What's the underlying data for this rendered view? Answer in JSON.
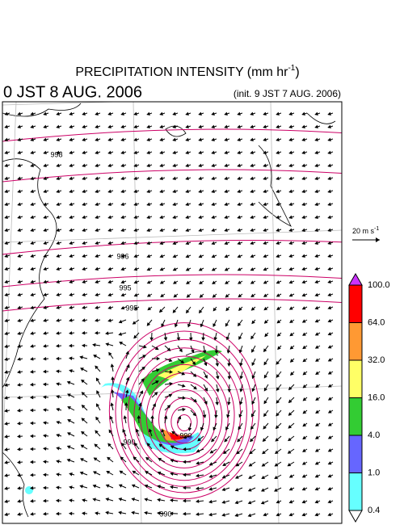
{
  "header": {
    "title": "PRECIPITATION INTENSITY (mm hr",
    "title_sup": "-1",
    "title_end": ")",
    "valid_time": "0 JST 8 AUG. 2006",
    "init_time": "(init. 9 JST 7 AUG. 2006)"
  },
  "scale_arrow": {
    "label": "20 m s",
    "sup": "-1"
  },
  "colorbar": {
    "levels": [
      {
        "label": "100.0",
        "color": "#ff0000"
      },
      {
        "label": "64.0",
        "color": "#ff9933"
      },
      {
        "label": "32.0",
        "color": "#ffff66"
      },
      {
        "label": "16.0",
        "color": "#33cc33"
      },
      {
        "label": "4.0",
        "color": "#6666ff"
      },
      {
        "label": "1.0",
        "color": "#66ffff"
      },
      {
        "label": "0.4",
        "color": "#ffffff"
      }
    ],
    "top_color": "#cc33ff"
  },
  "contour_labels": [
    "998",
    "996",
    "995",
    "995",
    "990",
    "990",
    "990"
  ]
}
